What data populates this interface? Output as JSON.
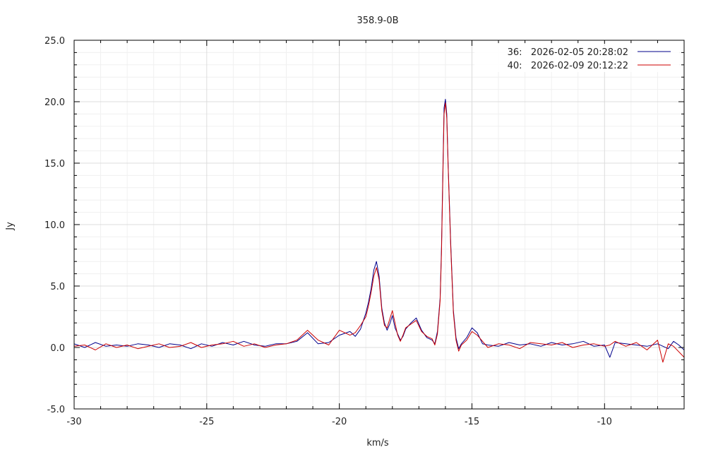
{
  "chart_data": {
    "type": "line",
    "title": "358.9-0B",
    "xlabel": "km/s",
    "ylabel": "Jy",
    "xlim": [
      -30,
      -7
    ],
    "ylim": [
      -5,
      25
    ],
    "x_ticks": [
      -30,
      -25,
      -20,
      -15,
      -10
    ],
    "x_tick_labels": [
      "-30",
      "-25",
      "-20",
      "-15",
      "-10"
    ],
    "y_ticks": [
      -5,
      0,
      5,
      10,
      15,
      20,
      25
    ],
    "y_tick_labels": [
      "-5.0",
      "0.0",
      "5.0",
      "10.0",
      "15.0",
      "20.0",
      "25.0"
    ],
    "grid": true,
    "legend_position": "top-right",
    "series": [
      {
        "name": "36:   2026-02-05 20:28:02",
        "color": "#00008b",
        "points": [
          [
            -30,
            0.3
          ],
          [
            -29.6,
            0.0
          ],
          [
            -29.2,
            0.4
          ],
          [
            -28.8,
            0.1
          ],
          [
            -28.4,
            0.2
          ],
          [
            -28.0,
            0.1
          ],
          [
            -27.6,
            0.3
          ],
          [
            -27.2,
            0.2
          ],
          [
            -26.8,
            0.0
          ],
          [
            -26.4,
            0.3
          ],
          [
            -26.0,
            0.2
          ],
          [
            -25.6,
            -0.1
          ],
          [
            -25.2,
            0.3
          ],
          [
            -24.8,
            0.1
          ],
          [
            -24.4,
            0.4
          ],
          [
            -24.0,
            0.2
          ],
          [
            -23.6,
            0.5
          ],
          [
            -23.2,
            0.2
          ],
          [
            -22.8,
            0.1
          ],
          [
            -22.4,
            0.3
          ],
          [
            -22.0,
            0.3
          ],
          [
            -21.6,
            0.5
          ],
          [
            -21.2,
            1.2
          ],
          [
            -20.8,
            0.3
          ],
          [
            -20.4,
            0.4
          ],
          [
            -20.0,
            1.0
          ],
          [
            -19.6,
            1.3
          ],
          [
            -19.4,
            0.9
          ],
          [
            -19.2,
            1.5
          ],
          [
            -19.0,
            2.8
          ],
          [
            -18.9,
            3.7
          ],
          [
            -18.8,
            4.8
          ],
          [
            -18.7,
            6.3
          ],
          [
            -18.6,
            7.0
          ],
          [
            -18.5,
            5.8
          ],
          [
            -18.4,
            3.2
          ],
          [
            -18.3,
            2.0
          ],
          [
            -18.2,
            1.4
          ],
          [
            -18.1,
            1.9
          ],
          [
            -18.0,
            2.6
          ],
          [
            -17.9,
            1.6
          ],
          [
            -17.8,
            1.1
          ],
          [
            -17.7,
            0.6
          ],
          [
            -17.6,
            0.9
          ],
          [
            -17.5,
            1.5
          ],
          [
            -17.3,
            2.0
          ],
          [
            -17.1,
            2.4
          ],
          [
            -16.9,
            1.4
          ],
          [
            -16.7,
            0.8
          ],
          [
            -16.5,
            0.6
          ],
          [
            -16.4,
            0.3
          ],
          [
            -16.3,
            1.3
          ],
          [
            -16.2,
            4.0
          ],
          [
            -16.15,
            8.0
          ],
          [
            -16.1,
            14.0
          ],
          [
            -16.05,
            19.5
          ],
          [
            -16.0,
            20.2
          ],
          [
            -15.95,
            19.0
          ],
          [
            -15.9,
            15.0
          ],
          [
            -15.8,
            8.5
          ],
          [
            -15.7,
            3.0
          ],
          [
            -15.6,
            0.8
          ],
          [
            -15.5,
            -0.1
          ],
          [
            -15.4,
            0.3
          ],
          [
            -15.2,
            0.8
          ],
          [
            -15.0,
            1.6
          ],
          [
            -14.8,
            1.2
          ],
          [
            -14.6,
            0.3
          ],
          [
            -14.4,
            0.2
          ],
          [
            -14.0,
            0.1
          ],
          [
            -13.6,
            0.4
          ],
          [
            -13.2,
            0.2
          ],
          [
            -12.8,
            0.3
          ],
          [
            -12.4,
            0.1
          ],
          [
            -12.0,
            0.4
          ],
          [
            -11.6,
            0.2
          ],
          [
            -11.2,
            0.3
          ],
          [
            -10.8,
            0.5
          ],
          [
            -10.4,
            0.1
          ],
          [
            -10.0,
            0.2
          ],
          [
            -9.8,
            -0.8
          ],
          [
            -9.6,
            0.4
          ],
          [
            -9.2,
            0.3
          ],
          [
            -8.8,
            0.2
          ],
          [
            -8.4,
            0.1
          ],
          [
            -8.0,
            0.3
          ],
          [
            -7.6,
            -0.1
          ],
          [
            -7.4,
            0.5
          ],
          [
            -7.2,
            0.2
          ],
          [
            -7.0,
            -0.2
          ]
        ]
      },
      {
        "name": "40:   2026-02-09 20:12:22",
        "color": "#cc0000",
        "points": [
          [
            -30,
            0.1
          ],
          [
            -29.6,
            0.2
          ],
          [
            -29.2,
            -0.2
          ],
          [
            -28.8,
            0.3
          ],
          [
            -28.4,
            0.0
          ],
          [
            -28.0,
            0.2
          ],
          [
            -27.6,
            -0.1
          ],
          [
            -27.2,
            0.1
          ],
          [
            -26.8,
            0.3
          ],
          [
            -26.4,
            0.0
          ],
          [
            -26.0,
            0.1
          ],
          [
            -25.6,
            0.4
          ],
          [
            -25.2,
            0.0
          ],
          [
            -24.8,
            0.2
          ],
          [
            -24.4,
            0.3
          ],
          [
            -24.0,
            0.5
          ],
          [
            -23.6,
            0.1
          ],
          [
            -23.2,
            0.3
          ],
          [
            -22.8,
            0.0
          ],
          [
            -22.4,
            0.2
          ],
          [
            -22.0,
            0.3
          ],
          [
            -21.6,
            0.6
          ],
          [
            -21.2,
            1.4
          ],
          [
            -20.8,
            0.6
          ],
          [
            -20.4,
            0.2
          ],
          [
            -20.0,
            1.4
          ],
          [
            -19.6,
            1.0
          ],
          [
            -19.4,
            1.2
          ],
          [
            -19.2,
            1.8
          ],
          [
            -19.0,
            2.5
          ],
          [
            -18.9,
            3.4
          ],
          [
            -18.8,
            4.5
          ],
          [
            -18.7,
            5.8
          ],
          [
            -18.6,
            6.5
          ],
          [
            -18.5,
            5.5
          ],
          [
            -18.4,
            3.0
          ],
          [
            -18.3,
            1.8
          ],
          [
            -18.2,
            1.6
          ],
          [
            -18.1,
            2.3
          ],
          [
            -18.0,
            3.0
          ],
          [
            -17.9,
            2.0
          ],
          [
            -17.8,
            1.0
          ],
          [
            -17.7,
            0.5
          ],
          [
            -17.6,
            1.0
          ],
          [
            -17.5,
            1.6
          ],
          [
            -17.3,
            1.9
          ],
          [
            -17.1,
            2.2
          ],
          [
            -16.9,
            1.3
          ],
          [
            -16.7,
            0.9
          ],
          [
            -16.5,
            0.7
          ],
          [
            -16.4,
            0.2
          ],
          [
            -16.3,
            1.1
          ],
          [
            -16.2,
            3.8
          ],
          [
            -16.15,
            7.6
          ],
          [
            -16.1,
            13.5
          ],
          [
            -16.05,
            19.0
          ],
          [
            -16.0,
            19.9
          ],
          [
            -15.95,
            18.7
          ],
          [
            -15.9,
            14.8
          ],
          [
            -15.8,
            8.2
          ],
          [
            -15.7,
            2.8
          ],
          [
            -15.6,
            0.6
          ],
          [
            -15.5,
            -0.3
          ],
          [
            -15.4,
            0.2
          ],
          [
            -15.2,
            0.6
          ],
          [
            -15.0,
            1.3
          ],
          [
            -14.8,
            1.0
          ],
          [
            -14.6,
            0.5
          ],
          [
            -14.4,
            0.0
          ],
          [
            -14.0,
            0.3
          ],
          [
            -13.6,
            0.2
          ],
          [
            -13.2,
            -0.1
          ],
          [
            -12.8,
            0.4
          ],
          [
            -12.4,
            0.3
          ],
          [
            -12.0,
            0.2
          ],
          [
            -11.6,
            0.4
          ],
          [
            -11.2,
            0.0
          ],
          [
            -10.8,
            0.2
          ],
          [
            -10.4,
            0.3
          ],
          [
            -10.0,
            0.1
          ],
          [
            -9.8,
            0.2
          ],
          [
            -9.6,
            0.5
          ],
          [
            -9.2,
            0.1
          ],
          [
            -8.8,
            0.4
          ],
          [
            -8.4,
            -0.2
          ],
          [
            -8.0,
            0.6
          ],
          [
            -7.8,
            -1.2
          ],
          [
            -7.6,
            0.3
          ],
          [
            -7.4,
            0.1
          ],
          [
            -7.0,
            -0.8
          ]
        ]
      }
    ]
  }
}
